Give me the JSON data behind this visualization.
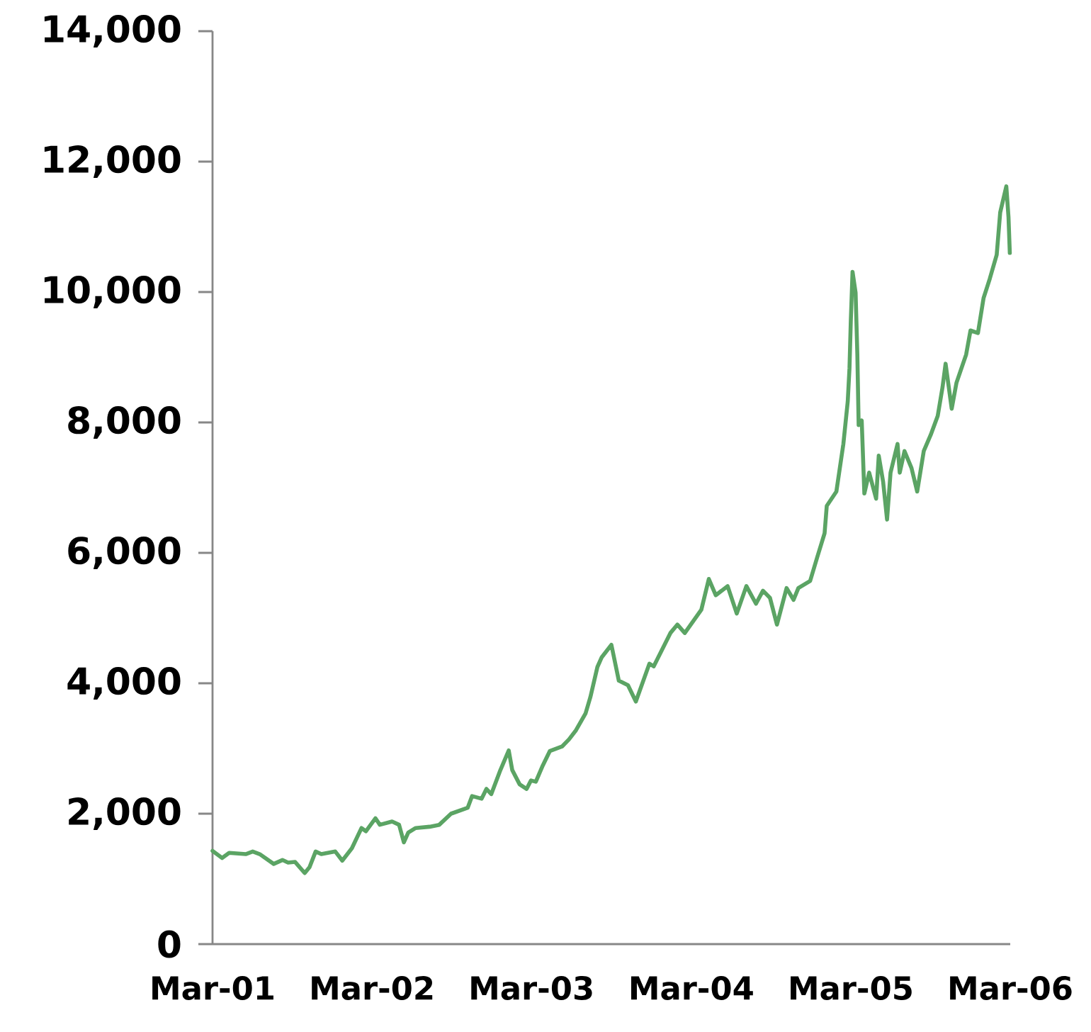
{
  "chart_data": {
    "type": "line",
    "x": [
      "2001-03-01",
      "2001-03-23",
      "2001-04-08",
      "2001-05-16",
      "2001-06-01",
      "2001-06-17",
      "2001-07-19",
      "2001-08-08",
      "2001-08-21",
      "2001-09-06",
      "2001-09-28",
      "2001-10-09",
      "2001-10-23",
      "2001-11-05",
      "2001-12-07",
      "2001-12-23",
      "2002-01-14",
      "2002-02-05",
      "2002-02-15",
      "2002-03-09",
      "2002-03-19",
      "2002-04-16",
      "2002-05-02",
      "2002-05-13",
      "2002-05-23",
      "2002-06-09",
      "2002-07-11",
      "2002-08-02",
      "2002-08-29",
      "2002-10-06",
      "2002-10-16",
      "2002-11-07",
      "2002-11-18",
      "2002-11-29",
      "2002-12-20",
      "2003-01-08",
      "2003-01-16",
      "2003-02-02",
      "2003-02-18",
      "2003-02-28",
      "2003-03-11",
      "2003-03-27",
      "2003-04-12",
      "2003-05-10",
      "2003-05-26",
      "2003-06-11",
      "2003-07-03",
      "2003-07-14",
      "2003-07-30",
      "2003-08-09",
      "2003-08-31",
      "2003-09-17",
      "2003-10-08",
      "2003-10-26",
      "2003-11-26",
      "2003-12-06",
      "2004-01-13",
      "2004-01-29",
      "2004-02-15",
      "2004-03-24",
      "2004-04-10",
      "2004-04-26",
      "2004-05-23",
      "2004-06-13",
      "2004-07-05",
      "2004-07-27",
      "2004-08-12",
      "2004-08-28",
      "2004-09-13",
      "2004-10-05",
      "2004-10-21",
      "2004-11-01",
      "2004-11-28",
      "2004-12-14",
      "2004-12-31",
      "2005-01-05",
      "2005-01-27",
      "2005-02-12",
      "2005-02-22",
      "2005-02-26",
      "2005-03-01",
      "2005-03-05",
      "2005-03-12",
      "2005-03-16",
      "2005-03-19",
      "2005-03-26",
      "2005-04-01",
      "2005-04-12",
      "2005-04-28",
      "2005-05-04",
      "2005-05-14",
      "2005-05-23",
      "2005-05-31",
      "2005-06-16",
      "2005-06-21",
      "2005-07-02",
      "2005-07-18",
      "2005-07-31",
      "2005-08-15",
      "2005-08-31",
      "2005-09-16",
      "2005-09-27",
      "2005-10-04",
      "2005-10-18",
      "2005-10-29",
      "2005-11-20",
      "2005-11-30",
      "2005-12-17",
      "2005-12-30",
      "2006-01-13",
      "2006-01-29",
      "2006-02-06",
      "2006-02-20",
      "2006-02-25",
      "2006-02-28"
    ],
    "series": [
      {
        "color": "#5ba464",
        "values": [
          1430,
          1320,
          1400,
          1380,
          1420,
          1380,
          1230,
          1290,
          1250,
          1260,
          1090,
          1180,
          1420,
          1380,
          1420,
          1280,
          1470,
          1780,
          1730,
          1930,
          1830,
          1880,
          1830,
          1560,
          1710,
          1780,
          1800,
          1830,
          2000,
          2090,
          2270,
          2230,
          2380,
          2300,
          2670,
          2970,
          2670,
          2450,
          2380,
          2510,
          2490,
          2740,
          2960,
          3030,
          3140,
          3280,
          3540,
          3790,
          4250,
          4400,
          4590,
          4040,
          3970,
          3720,
          4300,
          4260,
          4770,
          4900,
          4770,
          5130,
          5600,
          5350,
          5490,
          5070,
          5490,
          5220,
          5420,
          5310,
          4900,
          5460,
          5280,
          5460,
          5570,
          5930,
          6300,
          6720,
          6940,
          7670,
          8320,
          8830,
          9550,
          10310,
          9990,
          9040,
          7960,
          8030,
          6910,
          7230,
          6830,
          7490,
          7090,
          6510,
          7230,
          7670,
          7230,
          7560,
          7300,
          6940,
          7560,
          7810,
          8100,
          8540,
          8900,
          8210,
          8610,
          9040,
          9410,
          9370,
          9910,
          10200,
          10570,
          11220,
          11620,
          11150,
          10600
        ]
      }
    ],
    "xlim": [
      "2001-03-01",
      "2006-03-01"
    ],
    "xticks": [
      {
        "value": "2001-03-01",
        "label": "Mar-01"
      },
      {
        "value": "2002-03-01",
        "label": "Mar-02"
      },
      {
        "value": "2003-03-01",
        "label": "Mar-03"
      },
      {
        "value": "2004-03-01",
        "label": "Mar-04"
      },
      {
        "value": "2005-03-01",
        "label": "Mar-05"
      },
      {
        "value": "2006-03-01",
        "label": "Mar-06"
      }
    ],
    "ylim": [
      0,
      14000
    ],
    "yticks": [
      0,
      {
        "value": 2000,
        "label": "2,000"
      },
      {
        "value": 4000,
        "label": "4,000"
      },
      {
        "value": 6000,
        "label": "6,000"
      },
      {
        "value": 8000,
        "label": "8,000"
      },
      {
        "value": 10000,
        "label": "10,000"
      },
      {
        "value": 12000,
        "label": "12,000"
      },
      {
        "value": 14000,
        "label": "14,000"
      }
    ]
  }
}
